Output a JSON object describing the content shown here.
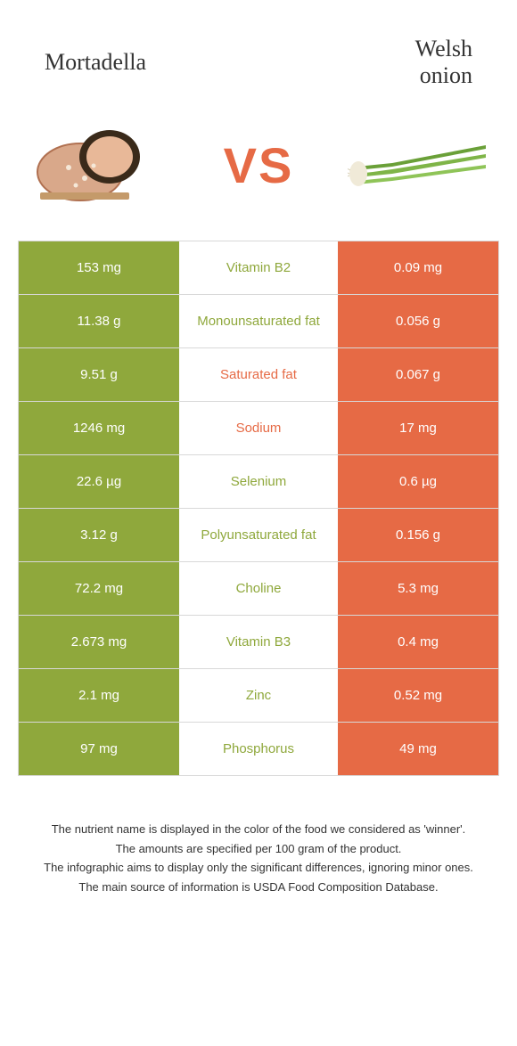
{
  "header": {
    "left_title": "Mortadella",
    "right_title_line1": "Welsh",
    "right_title_line2": "onion"
  },
  "vs_label": "VS",
  "colors": {
    "left": "#8fa83c",
    "right": "#e66a45",
    "row_border": "#d8d8d8",
    "text_white": "#ffffff"
  },
  "rows": [
    {
      "left": "153 mg",
      "mid": "Vitamin B2",
      "right": "0.09 mg",
      "winner": "left"
    },
    {
      "left": "11.38 g",
      "mid": "Monounsaturated fat",
      "right": "0.056 g",
      "winner": "left"
    },
    {
      "left": "9.51 g",
      "mid": "Saturated fat",
      "right": "0.067 g",
      "winner": "right"
    },
    {
      "left": "1246 mg",
      "mid": "Sodium",
      "right": "17 mg",
      "winner": "right"
    },
    {
      "left": "22.6 µg",
      "mid": "Selenium",
      "right": "0.6 µg",
      "winner": "left"
    },
    {
      "left": "3.12 g",
      "mid": "Polyunsaturated fat",
      "right": "0.156 g",
      "winner": "left"
    },
    {
      "left": "72.2 mg",
      "mid": "Choline",
      "right": "5.3 mg",
      "winner": "left"
    },
    {
      "left": "2.673 mg",
      "mid": "Vitamin B3",
      "right": "0.4 mg",
      "winner": "left"
    },
    {
      "left": "2.1 mg",
      "mid": "Zinc",
      "right": "0.52 mg",
      "winner": "left"
    },
    {
      "left": "97 mg",
      "mid": "Phosphorus",
      "right": "49 mg",
      "winner": "left"
    }
  ],
  "footer": {
    "line1": "The nutrient name is displayed in the color of the food we considered as 'winner'.",
    "line2": "The amounts are specified per 100 gram of the product.",
    "line3": "The infographic aims to display only the significant differences, ignoring minor ones.",
    "line4": "The main source of information is USDA Food Composition Database."
  }
}
